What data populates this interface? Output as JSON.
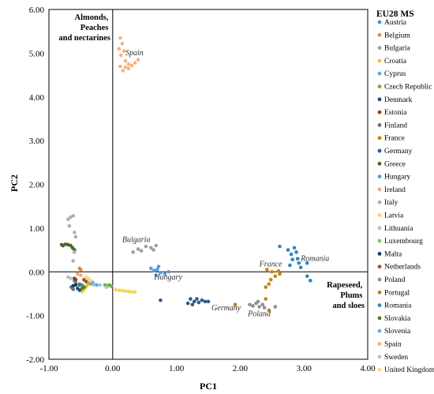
{
  "chart_data": {
    "type": "scatter",
    "xlabel": "PC1",
    "ylabel": "PC2",
    "xlim": [
      -1.0,
      4.0
    ],
    "ylim": [
      -2.0,
      6.0
    ],
    "x_ticks": [
      "-1.00",
      "0.00",
      "1.00",
      "2.00",
      "3.00",
      "4.00"
    ],
    "y_ticks": [
      "-2.00",
      "-1.00",
      "0.00",
      "1.00",
      "2.00",
      "3.00",
      "4.00",
      "5.00",
      "6.00"
    ],
    "grid": false,
    "legend_title": "EU28 MS",
    "legend_position": "right",
    "quadrant_labels": {
      "top_left": [
        "Almonds,",
        "Peaches",
        "and nectarines"
      ],
      "bottom_right": [
        "Rapeseed,",
        "Plums",
        "and sloes"
      ]
    },
    "annotations": [
      {
        "text": "Spain",
        "x": 0.2,
        "y": 4.95
      },
      {
        "text": "Bulgaria",
        "x": 0.15,
        "y": 0.68
      },
      {
        "text": "Hungary",
        "x": 0.65,
        "y": -0.18
      },
      {
        "text": "France",
        "x": 2.3,
        "y": 0.12
      },
      {
        "text": "Romania",
        "x": 2.95,
        "y": 0.25
      },
      {
        "text": "Germany",
        "x": 1.55,
        "y": -0.88
      },
      {
        "text": "Poland",
        "x": 2.12,
        "y": -1.02
      }
    ],
    "series": [
      {
        "name": "Austria",
        "color": "#4e8fcf",
        "points": [
          [
            -0.58,
            -0.25
          ],
          [
            -0.52,
            -0.28
          ],
          [
            -0.6,
            -0.2
          ],
          [
            -0.48,
            -0.3
          ]
        ]
      },
      {
        "name": "Belgium",
        "color": "#e8893a",
        "points": [
          [
            -0.5,
            0.05
          ],
          [
            -0.52,
            0.08
          ]
        ]
      },
      {
        "name": "Bulgaria",
        "color": "#a0a0a0",
        "points": [
          [
            0.32,
            0.45
          ],
          [
            0.4,
            0.52
          ],
          [
            0.52,
            0.58
          ],
          [
            0.6,
            0.55
          ],
          [
            0.64,
            0.5
          ],
          [
            0.68,
            0.6
          ],
          [
            0.45,
            0.48
          ]
        ]
      },
      {
        "name": "Croatia",
        "color": "#f1c232",
        "points": [
          [
            -0.45,
            -0.4
          ],
          [
            -0.42,
            -0.35
          ],
          [
            -0.48,
            -0.45
          ],
          [
            -0.4,
            -0.3
          ]
        ]
      },
      {
        "name": "Cyprus",
        "color": "#5ea8d8",
        "points": [
          [
            -0.3,
            -0.28
          ],
          [
            -0.25,
            -0.3
          ]
        ]
      },
      {
        "name": "Czech Republic",
        "color": "#70ad47",
        "points": [
          [
            -0.05,
            -0.3
          ],
          [
            -0.08,
            -0.32
          ],
          [
            -0.12,
            -0.3
          ],
          [
            -0.02,
            -0.33
          ]
        ]
      },
      {
        "name": "Denmark",
        "color": "#1f4e79",
        "points": [
          [
            -0.55,
            -0.38
          ],
          [
            -0.52,
            -0.42
          ]
        ]
      },
      {
        "name": "Estonia",
        "color": "#8b4513",
        "points": [
          [
            -0.6,
            -0.15
          ],
          [
            -0.58,
            -0.18
          ]
        ]
      },
      {
        "name": "Finland",
        "color": "#707070",
        "points": [
          [
            -0.65,
            -0.35
          ],
          [
            -0.62,
            -0.4
          ]
        ]
      },
      {
        "name": "France",
        "color": "#c9850a",
        "points": [
          [
            2.42,
            0.05
          ],
          [
            2.5,
            0.0
          ],
          [
            2.55,
            -0.1
          ],
          [
            2.6,
            0.02
          ],
          [
            2.48,
            -0.18
          ],
          [
            2.45,
            -0.28
          ],
          [
            2.4,
            -0.35
          ],
          [
            2.62,
            -0.05
          ]
        ]
      },
      {
        "name": "Germany",
        "color": "#2e5c8a",
        "points": [
          [
            1.18,
            -0.72
          ],
          [
            1.22,
            -0.62
          ],
          [
            1.28,
            -0.68
          ],
          [
            1.32,
            -0.62
          ],
          [
            1.35,
            -0.7
          ],
          [
            1.4,
            -0.65
          ],
          [
            1.45,
            -0.68
          ],
          [
            1.25,
            -0.75
          ],
          [
            1.5,
            -0.68
          ],
          [
            0.75,
            -0.65
          ]
        ]
      },
      {
        "name": "Greece",
        "color": "#3f6b2a",
        "points": [
          [
            -0.78,
            0.6
          ],
          [
            -0.74,
            0.63
          ],
          [
            -0.7,
            0.62
          ],
          [
            -0.66,
            0.6
          ],
          [
            -0.63,
            0.55
          ],
          [
            -0.6,
            0.5
          ],
          [
            -0.8,
            0.62
          ]
        ]
      },
      {
        "name": "Hungary",
        "color": "#5b9bd5",
        "points": [
          [
            0.6,
            0.08
          ],
          [
            0.65,
            0.03
          ],
          [
            0.7,
            0.05
          ],
          [
            0.75,
            -0.02
          ],
          [
            0.82,
            -0.05
          ],
          [
            0.68,
            -0.08
          ],
          [
            0.72,
            0.12
          ],
          [
            0.88,
            0.0
          ]
        ]
      },
      {
        "name": "Ireland",
        "color": "#f4a582",
        "points": [
          [
            -0.55,
            -0.05
          ],
          [
            -0.5,
            -0.08
          ]
        ]
      },
      {
        "name": "Italy",
        "color": "#b0b0b0",
        "points": [
          [
            -0.7,
            1.2
          ],
          [
            -0.66,
            1.25
          ],
          [
            -0.62,
            1.28
          ],
          [
            -0.68,
            1.05
          ],
          [
            -0.6,
            0.9
          ],
          [
            -0.58,
            0.8
          ],
          [
            -0.62,
            0.25
          ],
          [
            -0.6,
            0.45
          ]
        ]
      },
      {
        "name": "Latvia",
        "color": "#f6d55c",
        "points": [
          [
            0.1,
            -0.42
          ],
          [
            0.15,
            -0.43
          ],
          [
            0.2,
            -0.44
          ],
          [
            0.25,
            -0.45
          ],
          [
            0.3,
            -0.46
          ],
          [
            0.05,
            -0.41
          ],
          [
            0.35,
            -0.46
          ]
        ]
      },
      {
        "name": "Lithuania",
        "color": "#9dc3e6",
        "points": [
          [
            -0.1,
            -0.35
          ],
          [
            -0.2,
            -0.3
          ],
          [
            -0.3,
            -0.3
          ]
        ]
      },
      {
        "name": "Luxembourg",
        "color": "#8bc34a",
        "points": [
          [
            -0.38,
            -0.25
          ],
          [
            -0.35,
            -0.28
          ]
        ]
      },
      {
        "name": "Malta",
        "color": "#1a3c6e",
        "points": [
          [
            -0.62,
            -0.32
          ],
          [
            -0.58,
            -0.3
          ]
        ]
      },
      {
        "name": "Netherlands",
        "color": "#a0522d",
        "points": [
          [
            -0.45,
            -0.18
          ],
          [
            -0.42,
            -0.22
          ]
        ]
      },
      {
        "name": "Poland",
        "color": "#909090",
        "points": [
          [
            2.15,
            -0.75
          ],
          [
            2.2,
            -0.78
          ],
          [
            2.25,
            -0.72
          ],
          [
            2.3,
            -0.8
          ],
          [
            2.35,
            -0.75
          ],
          [
            2.38,
            -0.82
          ],
          [
            2.28,
            -0.68
          ],
          [
            2.55,
            -0.8
          ]
        ]
      },
      {
        "name": "Portugal",
        "color": "#b8860b",
        "points": [
          [
            2.45,
            -0.88
          ],
          [
            2.4,
            -0.62
          ],
          [
            1.92,
            -0.75
          ]
        ]
      },
      {
        "name": "Romania",
        "color": "#2e86c1",
        "points": [
          [
            2.62,
            0.58
          ],
          [
            2.75,
            0.5
          ],
          [
            2.8,
            0.4
          ],
          [
            2.85,
            0.55
          ],
          [
            2.88,
            0.45
          ],
          [
            2.9,
            0.3
          ],
          [
            2.78,
            0.15
          ],
          [
            2.95,
            0.1
          ],
          [
            3.05,
            -0.1
          ],
          [
            3.1,
            -0.2
          ],
          [
            2.92,
            0.2
          ],
          [
            3.05,
            0.2
          ],
          [
            2.82,
            0.28
          ]
        ]
      },
      {
        "name": "Slovakia",
        "color": "#507c2b",
        "points": [
          [
            -0.52,
            -0.3
          ],
          [
            -0.48,
            -0.38
          ],
          [
            -0.45,
            -0.35
          ]
        ]
      },
      {
        "name": "Slovenia",
        "color": "#6fa8dc",
        "points": [
          [
            -0.35,
            -0.2
          ],
          [
            -0.32,
            -0.24
          ]
        ]
      },
      {
        "name": "Spain",
        "color": "#f4b183",
        "points": [
          [
            0.12,
            5.35
          ],
          [
            0.15,
            5.22
          ],
          [
            0.1,
            5.1
          ],
          [
            0.18,
            5.05
          ],
          [
            0.13,
            4.95
          ],
          [
            0.2,
            4.82
          ],
          [
            0.12,
            4.7
          ],
          [
            0.2,
            4.68
          ],
          [
            0.25,
            4.65
          ],
          [
            0.3,
            4.72
          ],
          [
            0.35,
            4.78
          ],
          [
            0.4,
            4.85
          ],
          [
            0.25,
            4.75
          ],
          [
            0.16,
            4.6
          ]
        ]
      },
      {
        "name": "Sweden",
        "color": "#c0c0c0",
        "points": [
          [
            -0.7,
            -0.12
          ],
          [
            -0.66,
            -0.15
          ]
        ]
      },
      {
        "name": "United Kingdom",
        "color": "#fcd975",
        "points": [
          [
            -0.42,
            -0.12
          ],
          [
            -0.38,
            -0.15
          ],
          [
            -0.35,
            -0.2
          ]
        ]
      }
    ]
  }
}
